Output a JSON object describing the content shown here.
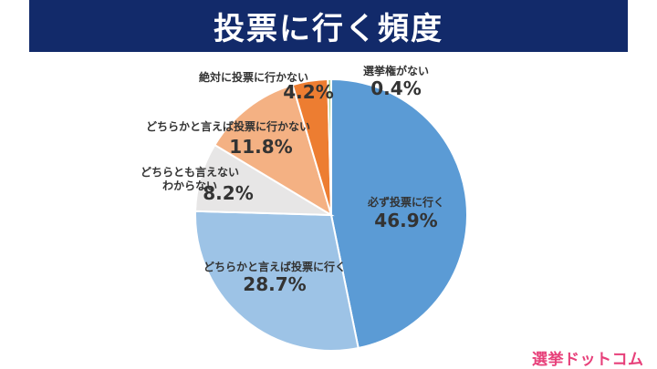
{
  "title": "投票に行く頻度",
  "logo_text": "選挙ドットコム",
  "chart_data": {
    "type": "pie",
    "title": "投票に行く頻度",
    "start_angle_deg": 0,
    "direction": "clockwise",
    "slices": [
      {
        "label": "必ず投票に行く",
        "label_lines": [
          "必ず投票に行く"
        ],
        "value": 46.9,
        "value_label": "46.9%",
        "color": "#5b9bd5"
      },
      {
        "label": "どちらかと言えば投票に行く",
        "label_lines": [
          "どちらかと言えば投票に行く"
        ],
        "value": 28.7,
        "value_label": "28.7%",
        "color": "#9dc3e6"
      },
      {
        "label": "どちらとも言えない わからない",
        "label_lines": [
          "どちらとも言えない",
          "わからない"
        ],
        "value": 8.2,
        "value_label": "8.2%",
        "color": "#e7e6e6"
      },
      {
        "label": "どちらかと言えば投票に行かない",
        "label_lines": [
          "どちらかと言えば投票に行かない"
        ],
        "value": 11.8,
        "value_label": "11.8%",
        "color": "#f4b183"
      },
      {
        "label": "絶対に投票に行かない",
        "label_lines": [
          "絶対に投票に行かない"
        ],
        "value": 4.2,
        "value_label": "4.2%",
        "color": "#ed7d31"
      },
      {
        "label": "選挙権がない",
        "label_lines": [
          "選挙権がない"
        ],
        "value": 0.4,
        "value_label": "0.4%",
        "color": "#a9d18e"
      }
    ]
  }
}
